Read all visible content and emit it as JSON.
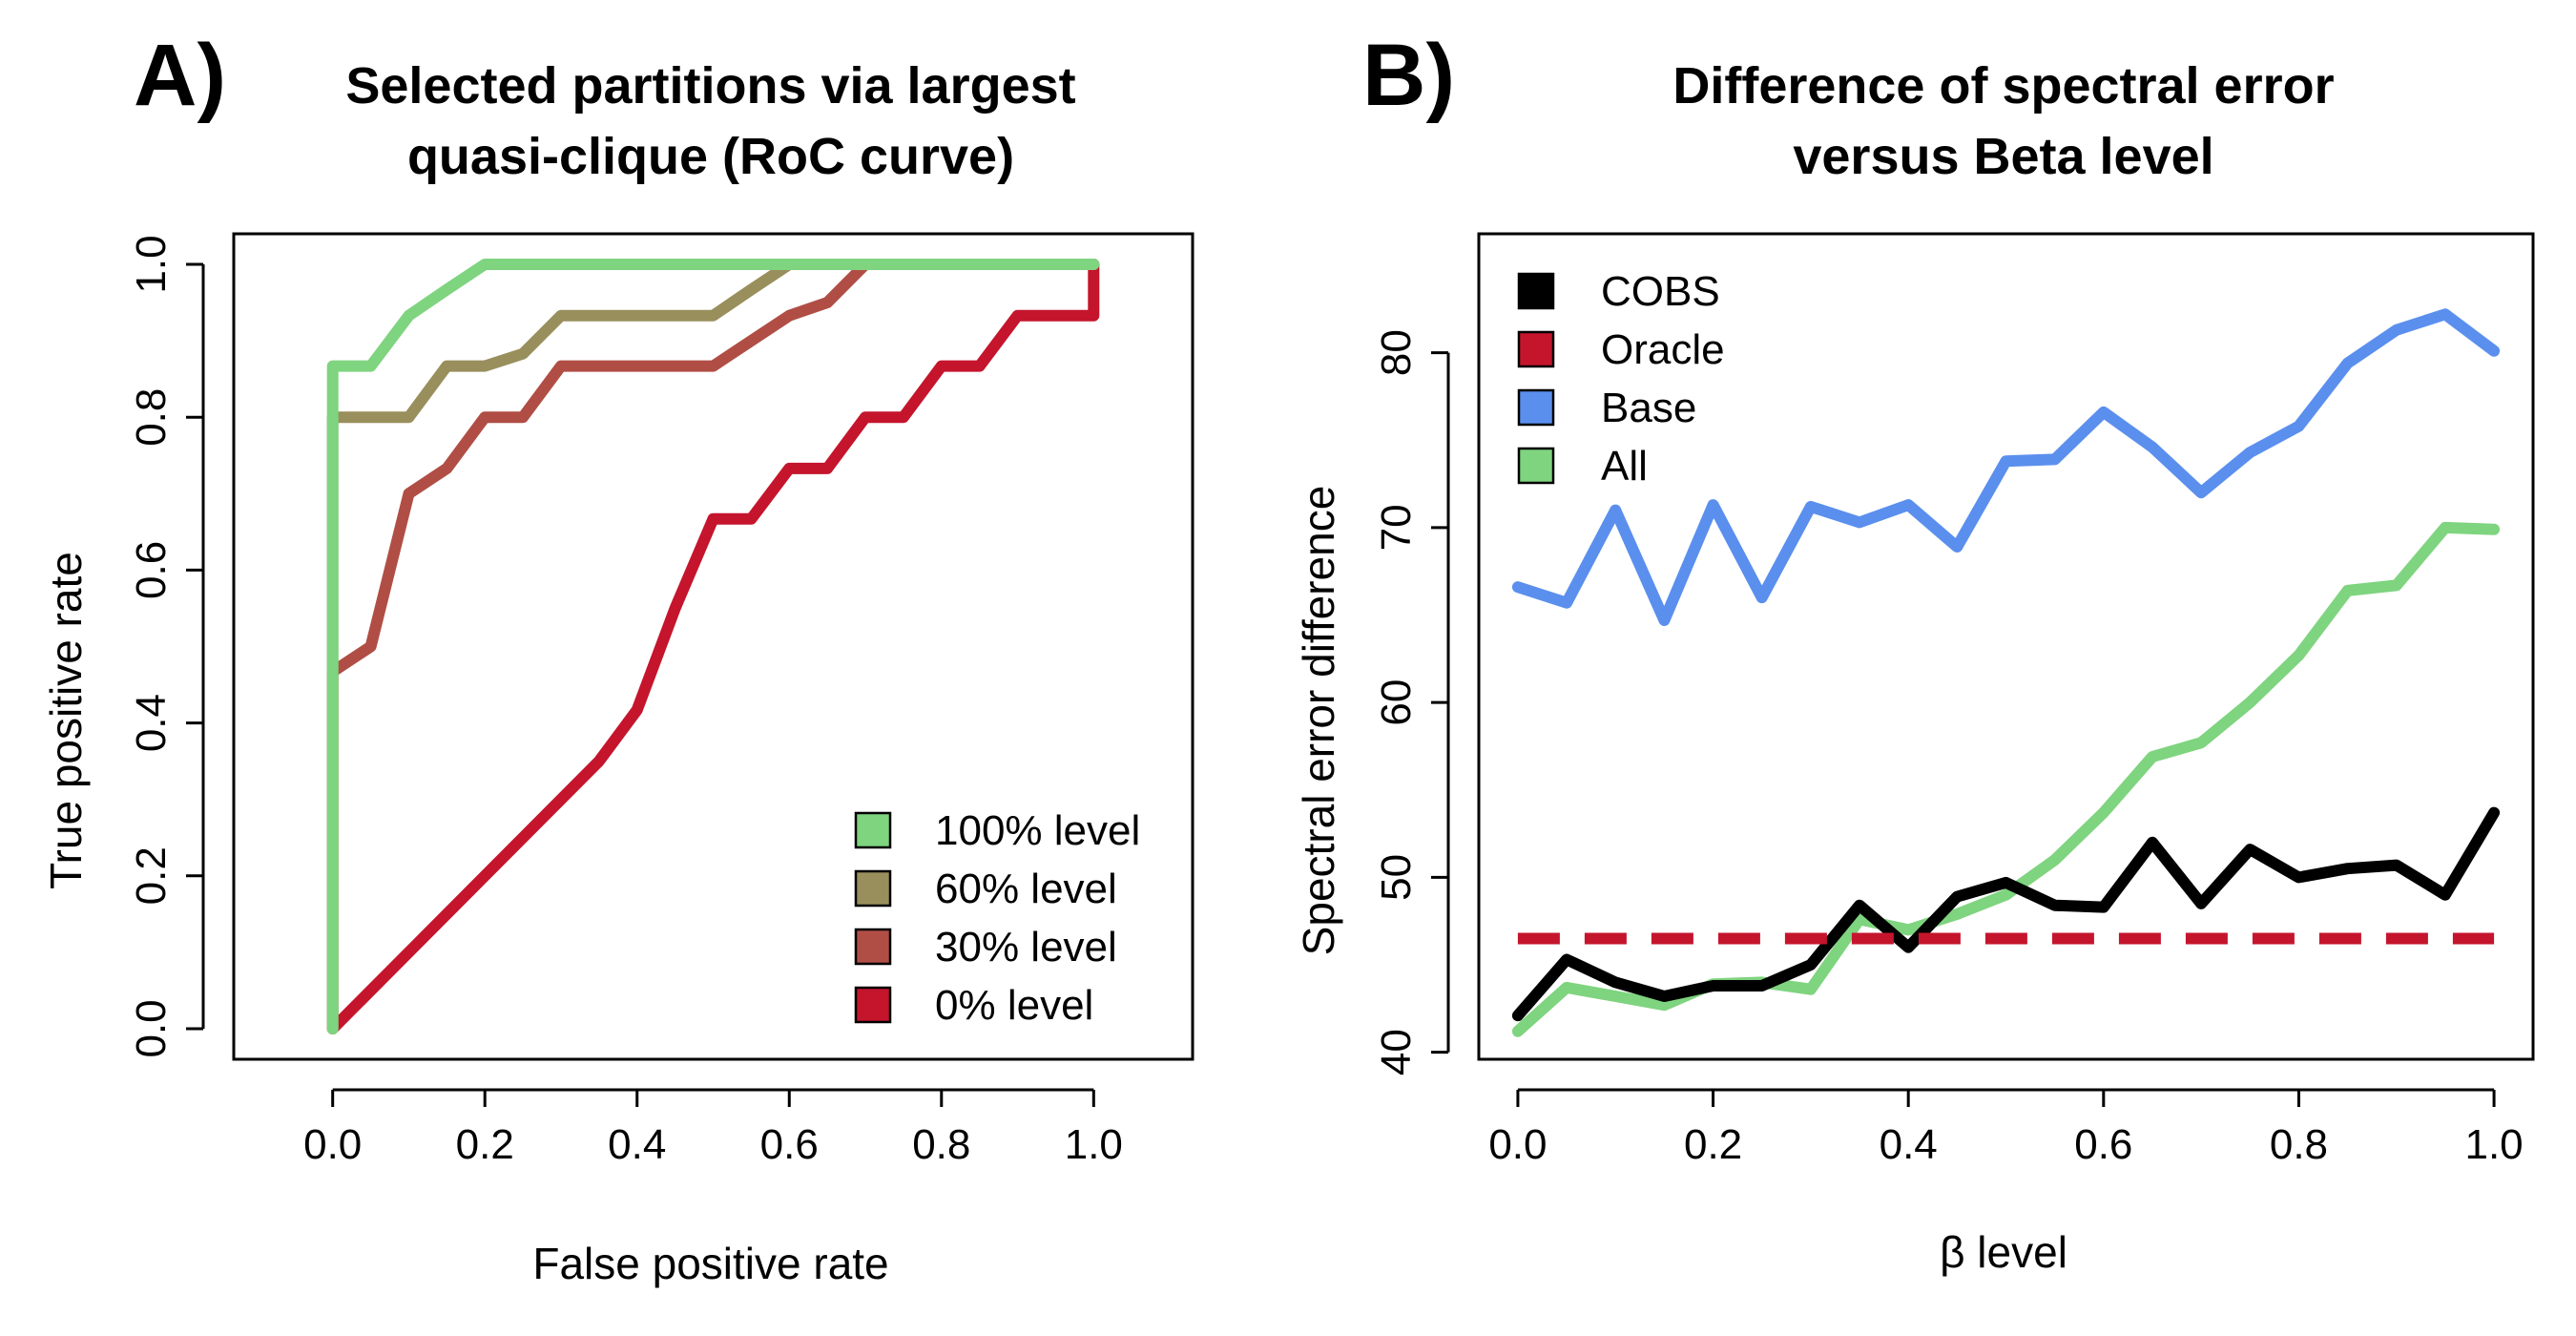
{
  "chart_data": [
    {
      "panel": "A)",
      "type": "line",
      "title": [
        "Selected partitions via largest",
        "quasi-clique (RoC curve)"
      ],
      "xlabel": "False positive rate",
      "ylabel": "True positive rate",
      "xlim": [
        -0.13,
        1.13
      ],
      "ylim": [
        -0.04,
        1.04
      ],
      "xticks": [
        0.0,
        0.2,
        0.4,
        0.6,
        0.8,
        1.0
      ],
      "xtick_labels": [
        "0.0",
        "0.2",
        "0.4",
        "0.6",
        "0.8",
        "1.0"
      ],
      "yticks": [
        0.0,
        0.2,
        0.4,
        0.6,
        0.8,
        1.0
      ],
      "ytick_labels": [
        "0.0",
        "0.2",
        "0.4",
        "0.6",
        "0.8",
        "1.0"
      ],
      "legend_position": "bottom-right",
      "draw_order": [
        3,
        2,
        1,
        0
      ],
      "series": [
        {
          "name": "100% level",
          "color": "#7fd47f",
          "x": [
            0,
            0,
            0.05,
            0.1,
            0.15,
            0.2,
            1.0
          ],
          "y": [
            0,
            0.867,
            0.867,
            0.933,
            0.967,
            1.0,
            1.0
          ]
        },
        {
          "name": "60% level",
          "color": "#998f5c",
          "x": [
            0,
            0,
            0.1,
            0.15,
            0.2,
            0.25,
            0.3,
            0.5,
            0.55,
            0.6,
            1.0
          ],
          "y": [
            0,
            0.8,
            0.8,
            0.867,
            0.867,
            0.883,
            0.933,
            0.933,
            0.967,
            1.0,
            1.0
          ]
        },
        {
          "name": "30% level",
          "color": "#b04e45",
          "x": [
            0,
            0,
            0.05,
            0.1,
            0.15,
            0.2,
            0.25,
            0.3,
            0.5,
            0.55,
            0.6,
            0.65,
            0.7,
            1.0
          ],
          "y": [
            0,
            0.467,
            0.5,
            0.7,
            0.733,
            0.8,
            0.8,
            0.867,
            0.867,
            0.9,
            0.933,
            0.95,
            1.0,
            1.0
          ]
        },
        {
          "name": "0% level",
          "color": "#c4152d",
          "x": [
            0,
            0.35,
            0.4,
            0.45,
            0.5,
            0.55,
            0.6,
            0.65,
            0.7,
            0.75,
            0.8,
            0.85,
            0.9,
            0.95,
            1.0,
            1.0
          ],
          "y": [
            0,
            0.35,
            0.417,
            0.55,
            0.667,
            0.667,
            0.733,
            0.733,
            0.8,
            0.8,
            0.867,
            0.867,
            0.933,
            0.933,
            0.933,
            1.0
          ]
        }
      ]
    },
    {
      "panel": "B)",
      "type": "line",
      "title": [
        "Difference of spectral error",
        "versus Beta level"
      ],
      "xlabel": "β level",
      "ylabel": "Spectral error difference",
      "xlim": [
        -0.04,
        1.04
      ],
      "ylim": [
        39.6,
        86.8
      ],
      "xticks": [
        0.0,
        0.2,
        0.4,
        0.6,
        0.8,
        1.0
      ],
      "xtick_labels": [
        "0.0",
        "0.2",
        "0.4",
        "0.6",
        "0.8",
        "1.0"
      ],
      "yticks": [
        40,
        50,
        60,
        70,
        80
      ],
      "ytick_labels": [
        "40",
        "50",
        "60",
        "70",
        "80"
      ],
      "legend_position": "top-left",
      "draw_order": [
        2,
        3,
        0,
        1
      ],
      "x": [
        0,
        0.05,
        0.1,
        0.15,
        0.2,
        0.25,
        0.3,
        0.35,
        0.4,
        0.45,
        0.5,
        0.55,
        0.6,
        0.65,
        0.7,
        0.75,
        0.8,
        0.85,
        0.9,
        0.95,
        1.0
      ],
      "series": [
        {
          "name": "COBS",
          "color": "#000000",
          "values": [
            42.1,
            45.3,
            44.0,
            43.2,
            43.8,
            43.8,
            45.0,
            48.4,
            46.0,
            48.9,
            49.7,
            48.4,
            48.3,
            52.0,
            48.5,
            51.6,
            50.0,
            50.5,
            50.7,
            49.0,
            53.7
          ]
        },
        {
          "name": "Oracle",
          "color": "#c4152d",
          "dashed": true,
          "values": [
            46.5,
            46.5,
            46.5,
            46.5,
            46.5,
            46.5,
            46.5,
            46.5,
            46.5,
            46.5,
            46.5,
            46.5,
            46.5,
            46.5,
            46.5,
            46.5,
            46.5,
            46.5,
            46.5,
            46.5,
            46.5
          ]
        },
        {
          "name": "Base",
          "color": "#5b8fee",
          "values": [
            66.6,
            65.7,
            71.0,
            64.7,
            71.3,
            66.0,
            71.2,
            70.3,
            71.3,
            68.9,
            73.8,
            73.9,
            76.6,
            74.6,
            72.0,
            74.3,
            75.8,
            79.4,
            81.3,
            82.2,
            80.1
          ]
        },
        {
          "name": "All",
          "color": "#7fd47f",
          "values": [
            41.2,
            43.7,
            43.2,
            42.7,
            43.9,
            44.0,
            43.6,
            47.6,
            47.0,
            47.9,
            49.0,
            51.0,
            53.7,
            56.9,
            57.7,
            60.0,
            62.7,
            66.4,
            66.7,
            70.0,
            69.9
          ]
        }
      ]
    }
  ]
}
